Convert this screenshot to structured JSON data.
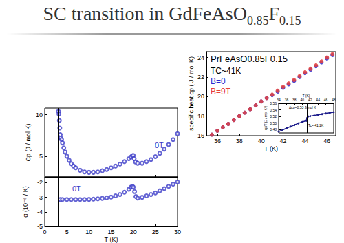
{
  "title": "SC transition in GdFeAsO0.85F0.15",
  "chart_data": [
    {
      "type": "scatter",
      "ylabel": "Cp (J / mol K)",
      "annotations": [
        "0T"
      ],
      "marker": "circle_open",
      "color": "#3c3cc8",
      "x": [
        3.1,
        3.2,
        3.3,
        3.4,
        3.5,
        3.6,
        3.8,
        4.0,
        4.3,
        4.6,
        5.0,
        5.5,
        6.0,
        6.5,
        7,
        8,
        9,
        10,
        11,
        12,
        13,
        14,
        15,
        16,
        17,
        18,
        19,
        19.5,
        19.8,
        20,
        20.2,
        20.5,
        21,
        22,
        23,
        24,
        25,
        26,
        27,
        28,
        29,
        30
      ],
      "values": [
        10.4,
        10.1,
        9.3,
        8.4,
        7.6,
        7.2,
        7.0,
        6.6,
        6.0,
        5.5,
        5.0,
        4.5,
        4.1,
        3.8,
        3.6,
        3.3,
        3.1,
        3.05,
        3.05,
        3.1,
        3.25,
        3.4,
        3.6,
        3.8,
        4.05,
        4.35,
        4.7,
        4.9,
        5.05,
        5.1,
        4.7,
        4.3,
        4.15,
        4.15,
        4.35,
        4.6,
        4.95,
        5.35,
        5.85,
        6.4,
        7.0,
        7.7
      ],
      "xlim": [
        0,
        30
      ],
      "xticks": [
        0,
        5,
        10,
        15,
        20,
        25,
        30
      ],
      "ylim": [
        2.5,
        10.8
      ],
      "yticks": [
        5,
        10
      ],
      "vlines": [
        3.2,
        20
      ],
      "tick_labels": "y"
    },
    {
      "type": "scatter",
      "xlabel": "T (K)",
      "ylabel": "α (10⁻⁶ / K)",
      "annotations": [
        "0T"
      ],
      "marker": "circle_open",
      "color": "#3c3cc8",
      "x": [
        3.5,
        4,
        5,
        6,
        7,
        8,
        9,
        10,
        11,
        12,
        13,
        14,
        15,
        16,
        17,
        18,
        19,
        19.5,
        19.8,
        20,
        20.3,
        20.6,
        21,
        22,
        23,
        24,
        25,
        26,
        27,
        28,
        29,
        30
      ],
      "values": [
        -3.15,
        -3.15,
        -3.15,
        -3.15,
        -3.15,
        -3.15,
        -3.15,
        -3.14,
        -3.12,
        -3.1,
        -3.07,
        -3.03,
        -2.98,
        -2.9,
        -2.8,
        -2.65,
        -2.45,
        -2.3,
        -2.25,
        -2.3,
        -2.6,
        -2.95,
        -3.05,
        -3.0,
        -2.9,
        -2.8,
        -2.7,
        -2.55,
        -2.4,
        -2.25,
        -2.1,
        -1.95
      ],
      "xlim": [
        0,
        30
      ],
      "xticks": [
        0,
        5,
        10,
        15,
        20,
        25,
        30
      ],
      "ylim": [
        -5,
        -1.6
      ],
      "yticks": [
        -5,
        -4,
        -3,
        -2
      ],
      "vlines": [
        3.2,
        20
      ]
    },
    {
      "type": "scatter",
      "title": "PrFeAsO0.85F0.15",
      "annotations": [
        "TC~41K"
      ],
      "marker": "circle",
      "xlabel": "T (K)",
      "ylabel": "specific heat cp ( J / mol K)",
      "x": [
        35.5,
        36,
        36.5,
        37,
        37.5,
        38,
        38.5,
        39,
        39.5,
        40,
        40.5,
        41,
        41.5,
        42,
        42.5,
        43,
        43.5,
        44,
        44.5,
        45,
        45.5,
        46,
        46.5
      ],
      "series": [
        {
          "name": "B=0",
          "color": "#2a2ad0",
          "values": [
            16.1,
            16.5,
            16.85,
            17.2,
            17.6,
            18.0,
            18.35,
            18.7,
            19.1,
            19.5,
            19.85,
            20.15,
            20.5,
            20.9,
            21.25,
            21.6,
            22.0,
            22.4,
            22.75,
            23.1,
            23.5,
            23.9,
            24.25
          ]
        },
        {
          "name": "B=9T",
          "color": "#e8403a",
          "values": [
            16.1,
            16.5,
            16.85,
            17.2,
            17.6,
            18.0,
            18.35,
            18.7,
            19.1,
            19.5,
            19.85,
            20.2,
            20.6,
            21.0,
            21.35,
            21.7,
            22.1,
            22.5,
            22.85,
            23.2,
            23.6,
            24.0,
            24.35
          ]
        }
      ],
      "xlim": [
        35,
        46.8
      ],
      "xticks": [
        36,
        38,
        40,
        42,
        44,
        46
      ],
      "ylim": [
        16,
        24.6
      ],
      "yticks": [
        16,
        18,
        20,
        22,
        24
      ]
    },
    {
      "type": "line",
      "xlabel": "T (K)",
      "ylabel": "cp/T (J / mol K²)",
      "annotations": [
        "Δcp=0.53 J/mol K",
        "Tc= 41.2K"
      ],
      "marker": "circle",
      "line_style": "solid",
      "color": "#1a1a8a",
      "x": [
        34,
        35,
        36,
        37,
        38,
        39,
        40,
        41,
        41.2,
        41.5,
        42,
        43,
        44,
        45,
        46,
        47,
        48
      ],
      "values": [
        0.474,
        0.479,
        0.484,
        0.489,
        0.494,
        0.499,
        0.503,
        0.507,
        0.515,
        0.52,
        0.521,
        0.523,
        0.525,
        0.527,
        0.529,
        0.531,
        0.533
      ],
      "xlim": [
        34,
        48
      ],
      "xticks": [
        34,
        36,
        38,
        40,
        42,
        44,
        46,
        48
      ],
      "ylim": [
        0.47,
        0.56
      ],
      "yticks": [
        0.48,
        {
          "value": 0.5,
          "label": "0.50"
        },
        0.52,
        0.54,
        0.56
      ],
      "vlines": [
        41.2
      ]
    }
  ]
}
